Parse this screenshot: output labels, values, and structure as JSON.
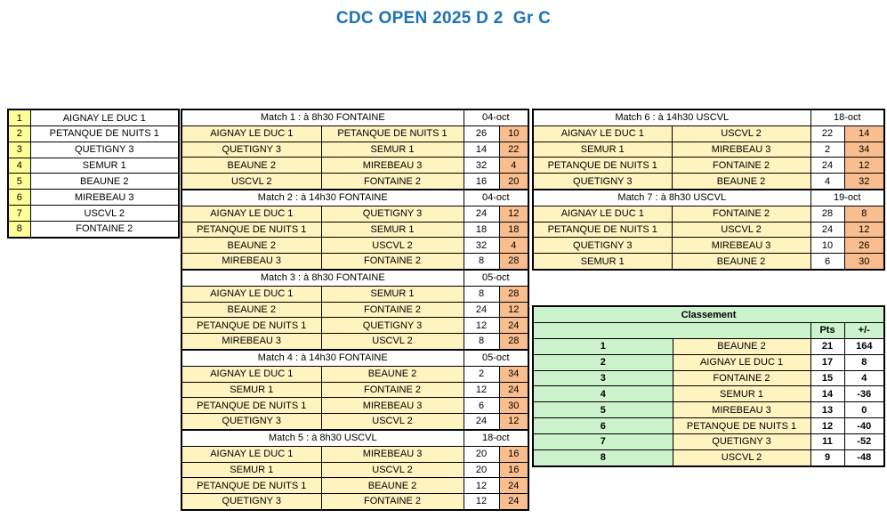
{
  "title": "CDC OPEN 2025 D 2  Gr C",
  "colors": {
    "title_blue": "#1D72B5",
    "list_number_yellow": "#FFFF99",
    "team_cell_cream": "#FFF3C0",
    "score_right_salmon": "#F9BE8F",
    "classement_green": "#CDF3CD",
    "border_black": "#000000",
    "background_white": "#FFFFFF"
  },
  "teams_list": [
    {
      "rank": "1",
      "name": "AIGNAY LE DUC 1"
    },
    {
      "rank": "2",
      "name": "PETANQUE DE NUITS 1"
    },
    {
      "rank": "3",
      "name": "QUETIGNY 3"
    },
    {
      "rank": "4",
      "name": "SEMUR 1"
    },
    {
      "rank": "5",
      "name": "BEAUNE 2"
    },
    {
      "rank": "6",
      "name": "MIREBEAU 3"
    },
    {
      "rank": "7",
      "name": "USCVL 2"
    },
    {
      "rank": "8",
      "name": "FONTAINE 2"
    }
  ],
  "matches": [
    {
      "label": "Match 1 : à 8h30 FONTAINE",
      "date": "04-oct",
      "column": "middle",
      "rows": [
        {
          "team1": "AIGNAY LE DUC 1",
          "team2": "PETANQUE DE NUITS 1",
          "score1": "26",
          "score2": "10"
        },
        {
          "team1": "QUETIGNY 3",
          "team2": "SEMUR 1",
          "score1": "14",
          "score2": "22"
        },
        {
          "team1": "BEAUNE 2",
          "team2": "MIREBEAU 3",
          "score1": "32",
          "score2": "4"
        },
        {
          "team1": "USCVL 2",
          "team2": "FONTAINE 2",
          "score1": "16",
          "score2": "20"
        }
      ]
    },
    {
      "label": "Match 2 : à 14h30 FONTAINE",
      "date": "04-oct",
      "column": "middle",
      "rows": [
        {
          "team1": "AIGNAY LE DUC 1",
          "team2": "QUETIGNY 3",
          "score1": "24",
          "score2": "12"
        },
        {
          "team1": "PETANQUE DE NUITS 1",
          "team2": "SEMUR 1",
          "score1": "18",
          "score2": "18"
        },
        {
          "team1": "BEAUNE 2",
          "team2": "USCVL 2",
          "score1": "32",
          "score2": "4"
        },
        {
          "team1": "MIREBEAU 3",
          "team2": "FONTAINE 2",
          "score1": "8",
          "score2": "28"
        }
      ]
    },
    {
      "label": "Match 3 : à 8h30 FONTAINE",
      "date": "05-oct",
      "column": "middle",
      "rows": [
        {
          "team1": "AIGNAY LE DUC 1",
          "team2": "SEMUR 1",
          "score1": "8",
          "score2": "28"
        },
        {
          "team1": "BEAUNE 2",
          "team2": "FONTAINE 2",
          "score1": "24",
          "score2": "12"
        },
        {
          "team1": "PETANQUE DE NUITS 1",
          "team2": "QUETIGNY 3",
          "score1": "12",
          "score2": "24"
        },
        {
          "team1": "MIREBEAU 3",
          "team2": "USCVL 2",
          "score1": "8",
          "score2": "28"
        }
      ]
    },
    {
      "label": "Match 4 : à 14h30 FONTAINE",
      "date": "05-oct",
      "column": "middle",
      "rows": [
        {
          "team1": "AIGNAY LE DUC 1",
          "team2": "BEAUNE 2",
          "score1": "2",
          "score2": "34"
        },
        {
          "team1": "SEMUR 1",
          "team2": "FONTAINE 2",
          "score1": "12",
          "score2": "24"
        },
        {
          "team1": "PETANQUE DE NUITS 1",
          "team2": "MIREBEAU 3",
          "score1": "6",
          "score2": "30"
        },
        {
          "team1": "QUETIGNY 3",
          "team2": "USCVL 2",
          "score1": "24",
          "score2": "12"
        }
      ]
    },
    {
      "label": "Match 5 : à 8h30 USCVL",
      "date": "18-oct",
      "column": "middle",
      "rows": [
        {
          "team1": "AIGNAY LE DUC 1",
          "team2": "MIREBEAU 3",
          "score1": "20",
          "score2": "16"
        },
        {
          "team1": "SEMUR 1",
          "team2": "USCVL 2",
          "score1": "20",
          "score2": "16"
        },
        {
          "team1": "PETANQUE DE NUITS 1",
          "team2": "BEAUNE 2",
          "score1": "12",
          "score2": "24"
        },
        {
          "team1": "QUETIGNY 3",
          "team2": "FONTAINE 2",
          "score1": "12",
          "score2": "24"
        }
      ]
    },
    {
      "label": "Match 6 : à 14h30 USCVL",
      "date": "18-oct",
      "column": "right",
      "rows": [
        {
          "team1": "AIGNAY LE DUC 1",
          "team2": "USCVL 2",
          "score1": "22",
          "score2": "14"
        },
        {
          "team1": "SEMUR 1",
          "team2": "MIREBEAU 3",
          "score1": "2",
          "score2": "34"
        },
        {
          "team1": "PETANQUE DE NUITS 1",
          "team2": "FONTAINE 2",
          "score1": "24",
          "score2": "12"
        },
        {
          "team1": "QUETIGNY 3",
          "team2": "BEAUNE 2",
          "score1": "4",
          "score2": "32"
        }
      ]
    },
    {
      "label": "Match 7 : à 8h30 USCVL",
      "date": "19-oct",
      "column": "right",
      "rows": [
        {
          "team1": "AIGNAY LE DUC 1",
          "team2": "FONTAINE 2",
          "score1": "28",
          "score2": "8"
        },
        {
          "team1": "PETANQUE DE NUITS 1",
          "team2": "USCVL 2",
          "score1": "24",
          "score2": "12"
        },
        {
          "team1": "QUETIGNY 3",
          "team2": "MIREBEAU 3",
          "score1": "10",
          "score2": "26"
        },
        {
          "team1": "SEMUR 1",
          "team2": "BEAUNE 2",
          "score1": "6",
          "score2": "30"
        }
      ]
    }
  ],
  "classement": {
    "title": "Classement",
    "pts_header": "Pts",
    "diff_header": "+/-",
    "rows": [
      {
        "rank": "1",
        "team": "BEAUNE 2",
        "pts": "21",
        "diff": "164"
      },
      {
        "rank": "2",
        "team": "AIGNAY LE DUC 1",
        "pts": "17",
        "diff": "8"
      },
      {
        "rank": "3",
        "team": "FONTAINE 2",
        "pts": "15",
        "diff": "4"
      },
      {
        "rank": "4",
        "team": "SEMUR 1",
        "pts": "14",
        "diff": "-36"
      },
      {
        "rank": "5",
        "team": "MIREBEAU 3",
        "pts": "13",
        "diff": "0"
      },
      {
        "rank": "6",
        "team": "PETANQUE DE NUITS 1",
        "pts": "12",
        "diff": "-40"
      },
      {
        "rank": "7",
        "team": "QUETIGNY 3",
        "pts": "11",
        "diff": "-52"
      },
      {
        "rank": "8",
        "team": "USCVL 2",
        "pts": "9",
        "diff": "-48"
      }
    ]
  }
}
